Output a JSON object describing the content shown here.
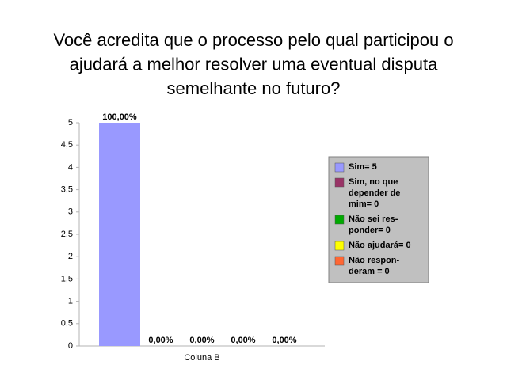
{
  "chart_data": {
    "type": "bar",
    "title": "Você acredita que o processo pelo qual participou o\najudará a melhor resolver uma eventual disputa\nsemelhante no futuro?",
    "categories": [
      "Coluna B"
    ],
    "series": [
      {
        "name": "Sim= 5",
        "color": "#9999ff",
        "values": [
          5
        ],
        "value_labels": [
          "100,00%"
        ]
      },
      {
        "name": "Sim, no que\ndepender de\nmim= 0",
        "color": "#993366",
        "values": [
          0
        ],
        "value_labels": [
          "0,00%"
        ]
      },
      {
        "name": "Não sei res-\nponder= 0",
        "color": "#00aa00",
        "values": [
          0
        ],
        "value_labels": [
          "0,00%"
        ]
      },
      {
        "name": "Não ajudará= 0",
        "color": "#ffff00",
        "values": [
          0
        ],
        "value_labels": [
          "0,00%"
        ]
      },
      {
        "name": "Não respon-\nderam = 0",
        "color": "#ff6633",
        "values": [
          0
        ],
        "value_labels": [
          "0,00%"
        ]
      }
    ],
    "ylim": [
      0,
      5
    ],
    "yticks": [
      0,
      {
        "value": 0.5,
        "label": "0,5"
      },
      1,
      {
        "value": 1.5,
        "label": "1,5"
      },
      2,
      {
        "value": 2.5,
        "label": "2,5"
      },
      3,
      {
        "value": 3.5,
        "label": "3,5"
      },
      4,
      {
        "value": 4.5,
        "label": "4,5"
      },
      5
    ],
    "legend": "right"
  }
}
